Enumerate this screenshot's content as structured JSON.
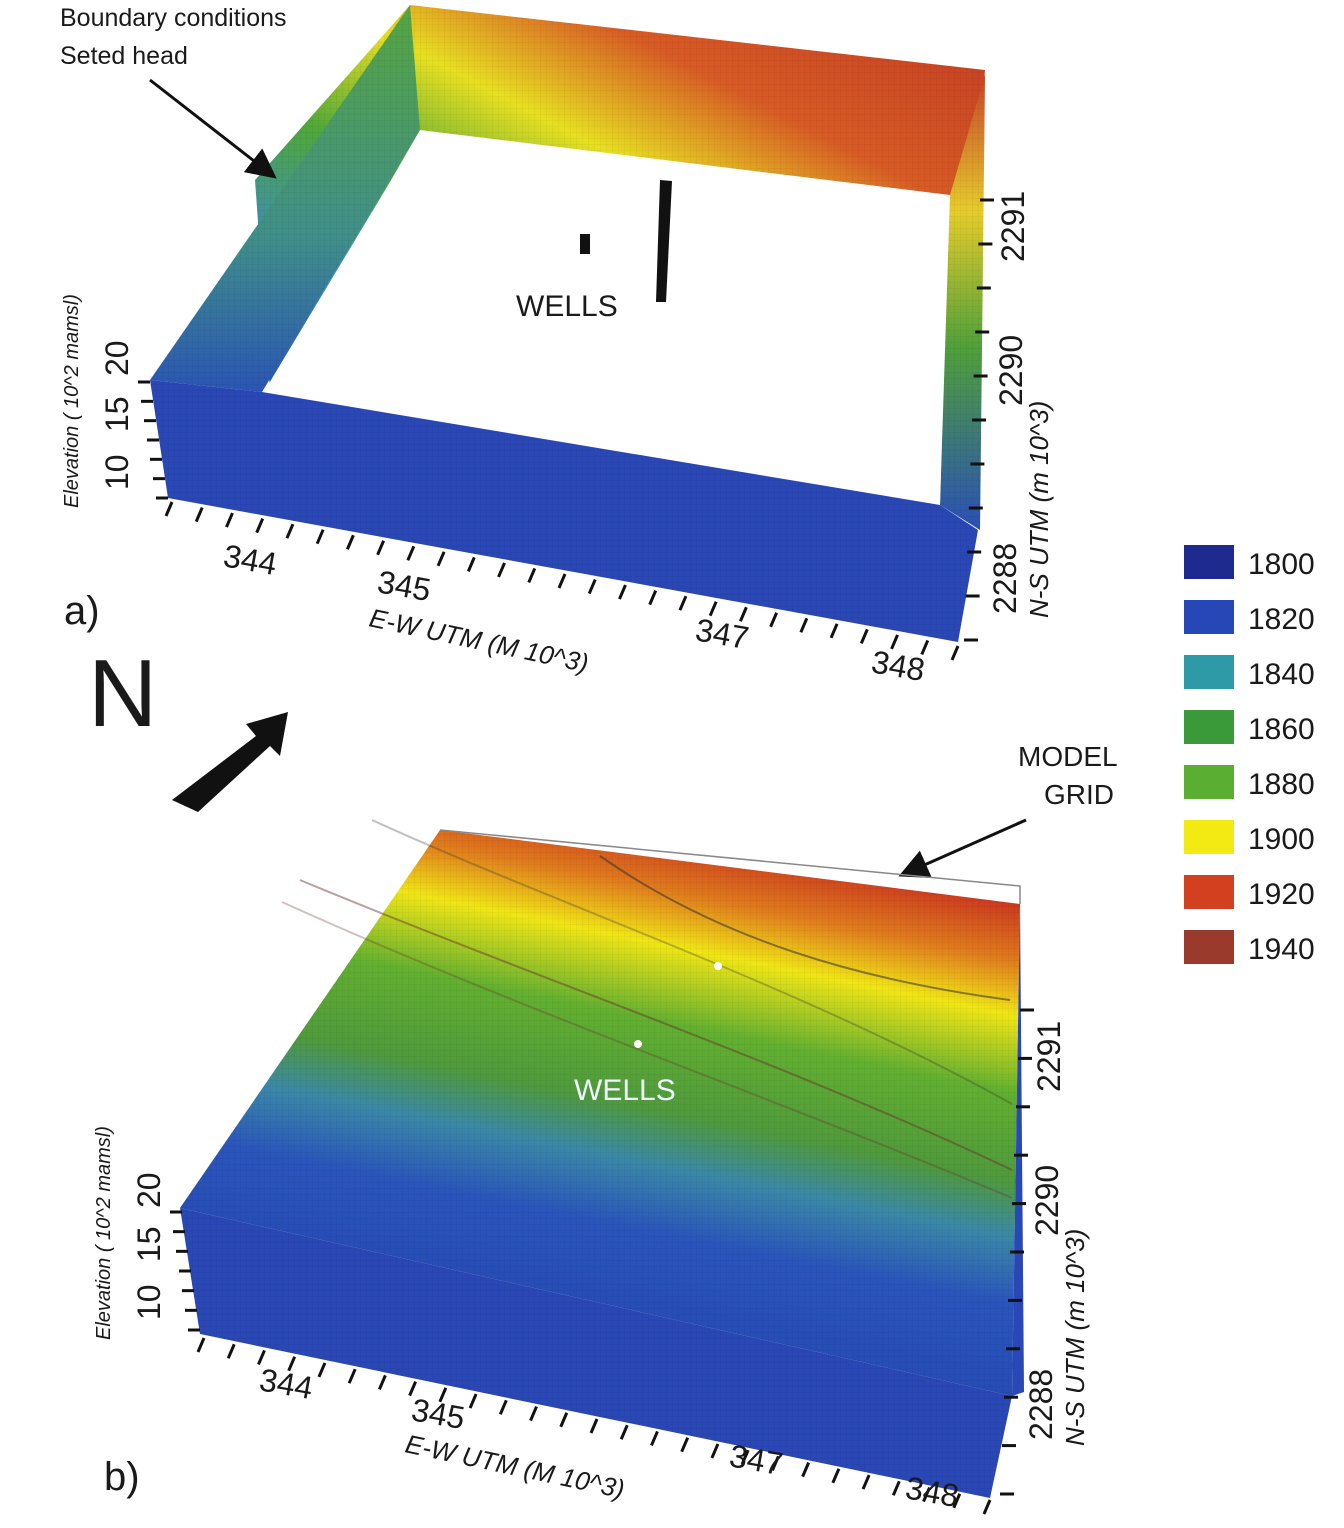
{
  "panel_a": {
    "label": "a)",
    "annotation_line1": "Boundary conditions",
    "annotation_line2": "Seted head",
    "wells_label": "WELLS",
    "z_axis_title": "Elevation (  10^2 mamsl)",
    "z_ticks": [
      "10",
      "15",
      "20"
    ],
    "x_axis_title": "E-W  UTM (M 10^3)",
    "x_ticks": [
      "344",
      "345",
      "347",
      "348"
    ],
    "y_axis_title": "N-S  UTM  (m 10^3)",
    "y_ticks": [
      "2288",
      "2290",
      "2291"
    ]
  },
  "panel_b": {
    "label": "b)",
    "wells_label": "WELLS",
    "grid_label_line1": "MODEL",
    "grid_label_line2": "GRID",
    "z_axis_title": "Elevation (  10^2 mamsl)",
    "z_ticks": [
      "10",
      "15",
      "20"
    ],
    "x_axis_title": "E-W  UTM (M 10^3)",
    "x_ticks": [
      "344",
      "345",
      "347",
      "348"
    ],
    "y_axis_title": "N-S  UTM  (m 10^3)",
    "y_ticks": [
      "2288",
      "2290",
      "2291"
    ]
  },
  "north": {
    "label": "N"
  },
  "legend": {
    "items": [
      {
        "label": "1800",
        "color": "#1f2a8f"
      },
      {
        "label": "1820",
        "color": "#2647b5"
      },
      {
        "label": "1840",
        "color": "#2e9aa8"
      },
      {
        "label": "1860",
        "color": "#3a9a3a"
      },
      {
        "label": "1880",
        "color": "#5aaf32"
      },
      {
        "label": "1900",
        "color": "#f2ea12"
      },
      {
        "label": "1920",
        "color": "#d2401f"
      },
      {
        "label": "1940",
        "color": "#9a3a2c"
      }
    ]
  }
}
